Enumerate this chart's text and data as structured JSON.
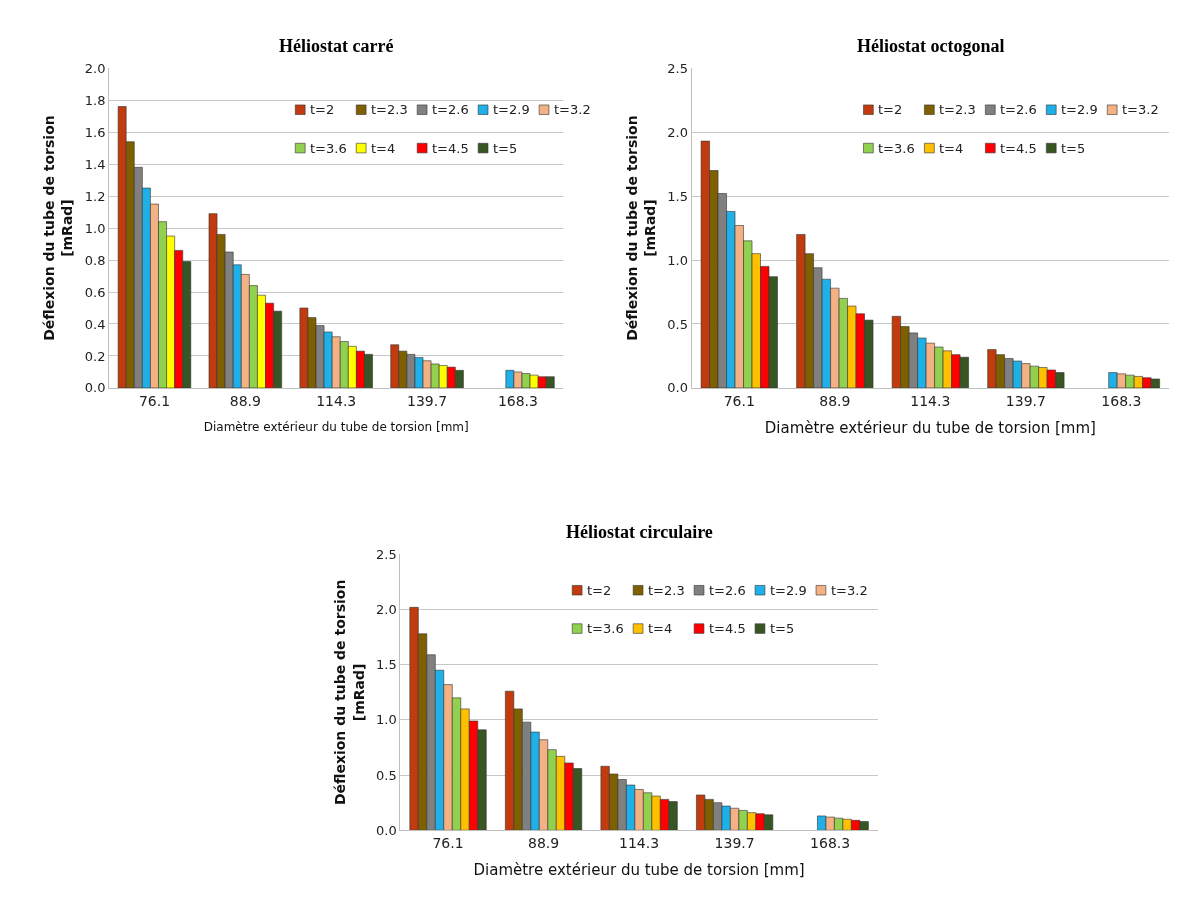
{
  "chart_data": [
    {
      "type": "bar",
      "title": "Héliostat carré",
      "xlabel": "Diamètre extérieur du tube de torsion [mm]",
      "ylabel": "Déflexion du tube de torsion\n[mRad]",
      "categories": [
        "76.1",
        "88.9",
        "114.3",
        "139.7",
        "168.3"
      ],
      "ylim": [
        0,
        2.0
      ],
      "yticks": [
        {
          "value": 0,
          "label": "0.0"
        },
        {
          "value": 0.2,
          "label": "0.2"
        },
        {
          "value": 0.4,
          "label": "0.4"
        },
        {
          "value": 0.6,
          "label": "0.6"
        },
        {
          "value": 0.8,
          "label": "0.8"
        },
        {
          "value": 1.0,
          "label": "1.0"
        },
        {
          "value": 1.2,
          "label": "1.2"
        },
        {
          "value": 1.4,
          "label": "1.4"
        },
        {
          "value": 1.6,
          "label": "1.6"
        },
        {
          "value": 1.8,
          "label": "1.8"
        },
        {
          "value": 2.0,
          "label": "2.0"
        }
      ],
      "grid": "y",
      "legend": "top right",
      "series": [
        {
          "name": "t=2",
          "color": "#c23b0f",
          "values": [
            1.76,
            1.09,
            0.5,
            0.27,
            null
          ]
        },
        {
          "name": "t=2.3",
          "color": "#7f6000",
          "values": [
            1.54,
            0.96,
            0.44,
            0.23,
            null
          ]
        },
        {
          "name": "t=2.6",
          "color": "#808080",
          "values": [
            1.38,
            0.85,
            0.39,
            0.21,
            null
          ]
        },
        {
          "name": "t=2.9",
          "color": "#1fb0e8",
          "values": [
            1.25,
            0.77,
            0.35,
            0.19,
            0.11
          ]
        },
        {
          "name": "t=3.2",
          "color": "#f4b183",
          "values": [
            1.15,
            0.71,
            0.32,
            0.17,
            0.1
          ]
        },
        {
          "name": "t=3.6",
          "color": "#92d050",
          "values": [
            1.04,
            0.64,
            0.29,
            0.15,
            0.09
          ]
        },
        {
          "name": "t=4",
          "color": "#ffff00",
          "values": [
            0.95,
            0.58,
            0.26,
            0.14,
            0.08
          ]
        },
        {
          "name": "t=4.5",
          "color": "#ff0000",
          "values": [
            0.86,
            0.53,
            0.23,
            0.13,
            0.07
          ]
        },
        {
          "name": "t=5",
          "color": "#375623",
          "values": [
            0.79,
            0.48,
            0.21,
            0.11,
            0.07
          ]
        }
      ]
    },
    {
      "type": "bar",
      "title": "Héliostat octogonal",
      "xlabel": "Diamètre extérieur du tube de torsion [mm]",
      "ylabel": "Déflexion du tube de torsion\n[mRad]",
      "categories": [
        "76.1",
        "88.9",
        "114.3",
        "139.7",
        "168.3"
      ],
      "ylim": [
        0,
        2.5
      ],
      "yticks": [
        {
          "value": 0,
          "label": "0.0"
        },
        {
          "value": 0.5,
          "label": "0.5"
        },
        {
          "value": 1.0,
          "label": "1.0"
        },
        {
          "value": 1.5,
          "label": "1.5"
        },
        {
          "value": 2.0,
          "label": "2.0"
        },
        {
          "value": 2.5,
          "label": "2.5"
        }
      ],
      "grid": "y",
      "legend": "top right",
      "series": [
        {
          "name": "t=2",
          "color": "#c23b0f",
          "values": [
            1.93,
            1.2,
            0.56,
            0.3,
            null
          ]
        },
        {
          "name": "t=2.3",
          "color": "#7f6000",
          "values": [
            1.7,
            1.05,
            0.48,
            0.26,
            null
          ]
        },
        {
          "name": "t=2.6",
          "color": "#808080",
          "values": [
            1.52,
            0.94,
            0.43,
            0.23,
            null
          ]
        },
        {
          "name": "t=2.9",
          "color": "#1fb0e8",
          "values": [
            1.38,
            0.85,
            0.39,
            0.21,
            0.12
          ]
        },
        {
          "name": "t=3.2",
          "color": "#f4b183",
          "values": [
            1.27,
            0.78,
            0.35,
            0.19,
            0.11
          ]
        },
        {
          "name": "t=3.6",
          "color": "#92d050",
          "values": [
            1.15,
            0.7,
            0.32,
            0.17,
            0.1
          ]
        },
        {
          "name": "t=4",
          "color": "#ffc000",
          "values": [
            1.05,
            0.64,
            0.29,
            0.16,
            0.09
          ]
        },
        {
          "name": "t=4.5",
          "color": "#ff0000",
          "values": [
            0.95,
            0.58,
            0.26,
            0.14,
            0.08
          ]
        },
        {
          "name": "t=5",
          "color": "#375623",
          "values": [
            0.87,
            0.53,
            0.24,
            0.12,
            0.07
          ]
        }
      ]
    },
    {
      "type": "bar",
      "title": "Héliostat circulaire",
      "xlabel": "Diamètre extérieur du tube de torsion [mm]",
      "ylabel": "Déflexion du tube de torsion\n[mRad]",
      "categories": [
        "76.1",
        "88.9",
        "114.3",
        "139.7",
        "168.3"
      ],
      "ylim": [
        0,
        2.5
      ],
      "yticks": [
        {
          "value": 0,
          "label": "0.0"
        },
        {
          "value": 0.5,
          "label": "0.5"
        },
        {
          "value": 1.0,
          "label": "1.0"
        },
        {
          "value": 1.5,
          "label": "1.5"
        },
        {
          "value": 2.0,
          "label": "2.0"
        },
        {
          "value": 2.5,
          "label": "2.5"
        }
      ],
      "grid": "y",
      "legend": "top right",
      "series": [
        {
          "name": "t=2",
          "color": "#c23b0f",
          "values": [
            2.02,
            1.26,
            0.58,
            0.32,
            null
          ]
        },
        {
          "name": "t=2.3",
          "color": "#7f6000",
          "values": [
            1.78,
            1.1,
            0.51,
            0.28,
            null
          ]
        },
        {
          "name": "t=2.6",
          "color": "#808080",
          "values": [
            1.59,
            0.98,
            0.46,
            0.25,
            null
          ]
        },
        {
          "name": "t=2.9",
          "color": "#1fb0e8",
          "values": [
            1.45,
            0.89,
            0.41,
            0.22,
            0.13
          ]
        },
        {
          "name": "t=3.2",
          "color": "#f4b183",
          "values": [
            1.32,
            0.82,
            0.37,
            0.2,
            0.12
          ]
        },
        {
          "name": "t=3.6",
          "color": "#92d050",
          "values": [
            1.2,
            0.73,
            0.34,
            0.18,
            0.11
          ]
        },
        {
          "name": "t=4",
          "color": "#ffc000",
          "values": [
            1.1,
            0.67,
            0.31,
            0.16,
            0.1
          ]
        },
        {
          "name": "t=4.5",
          "color": "#ff0000",
          "values": [
            0.99,
            0.61,
            0.28,
            0.15,
            0.09
          ]
        },
        {
          "name": "t=5",
          "color": "#375623",
          "values": [
            0.91,
            0.56,
            0.26,
            0.14,
            0.08
          ]
        }
      ]
    }
  ]
}
